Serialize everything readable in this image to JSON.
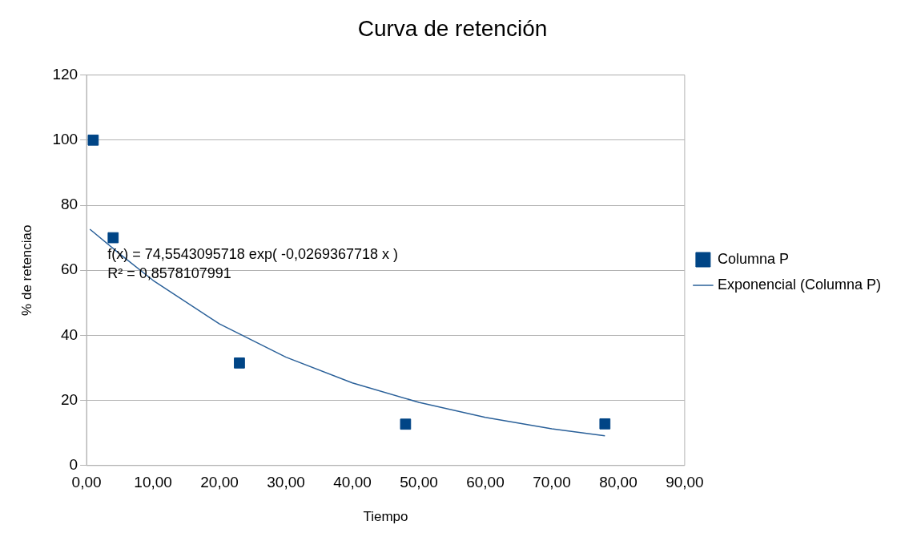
{
  "chart_data": {
    "type": "scatter",
    "title": "Curva de retención",
    "xlabel": "Tiempo",
    "ylabel": "% de retenciao",
    "x": [
      1,
      4,
      23,
      48,
      78
    ],
    "series": [
      {
        "name": "Columna P",
        "color": "#004586",
        "marker": "square",
        "values": [
          100,
          70,
          31.5,
          12.7,
          12.8
        ]
      },
      {
        "name": "Exponencial (Columna P)",
        "type": "line",
        "color": "#2a6099",
        "x": [
          0.5,
          5,
          10,
          20,
          30,
          40,
          50,
          60,
          70,
          78
        ],
        "values": [
          72.6,
          65.0,
          56.9,
          43.5,
          33.3,
          25.4,
          19.4,
          14.8,
          11.3,
          9.1
        ]
      }
    ],
    "xlim": [
      0,
      90
    ],
    "xticks": [
      {
        "value": 0,
        "label": "0,00"
      },
      {
        "value": 10,
        "label": "10,00"
      },
      {
        "value": 20,
        "label": "20,00"
      },
      {
        "value": 30,
        "label": "30,00"
      },
      {
        "value": 40,
        "label": "40,00"
      },
      {
        "value": 50,
        "label": "50,00"
      },
      {
        "value": 60,
        "label": "60,00"
      },
      {
        "value": 70,
        "label": "70,00"
      },
      {
        "value": 80,
        "label": "80,00"
      },
      {
        "value": 90,
        "label": "90,00"
      }
    ],
    "ylim": [
      0,
      120
    ],
    "yticks": [
      0,
      20,
      40,
      60,
      80,
      100,
      120
    ],
    "annotations": [
      "f(x) = 74,5543095718 exp( -0,0269367718 x )",
      "R² = 0,8578107991"
    ],
    "grid": "y",
    "legend": "right"
  }
}
